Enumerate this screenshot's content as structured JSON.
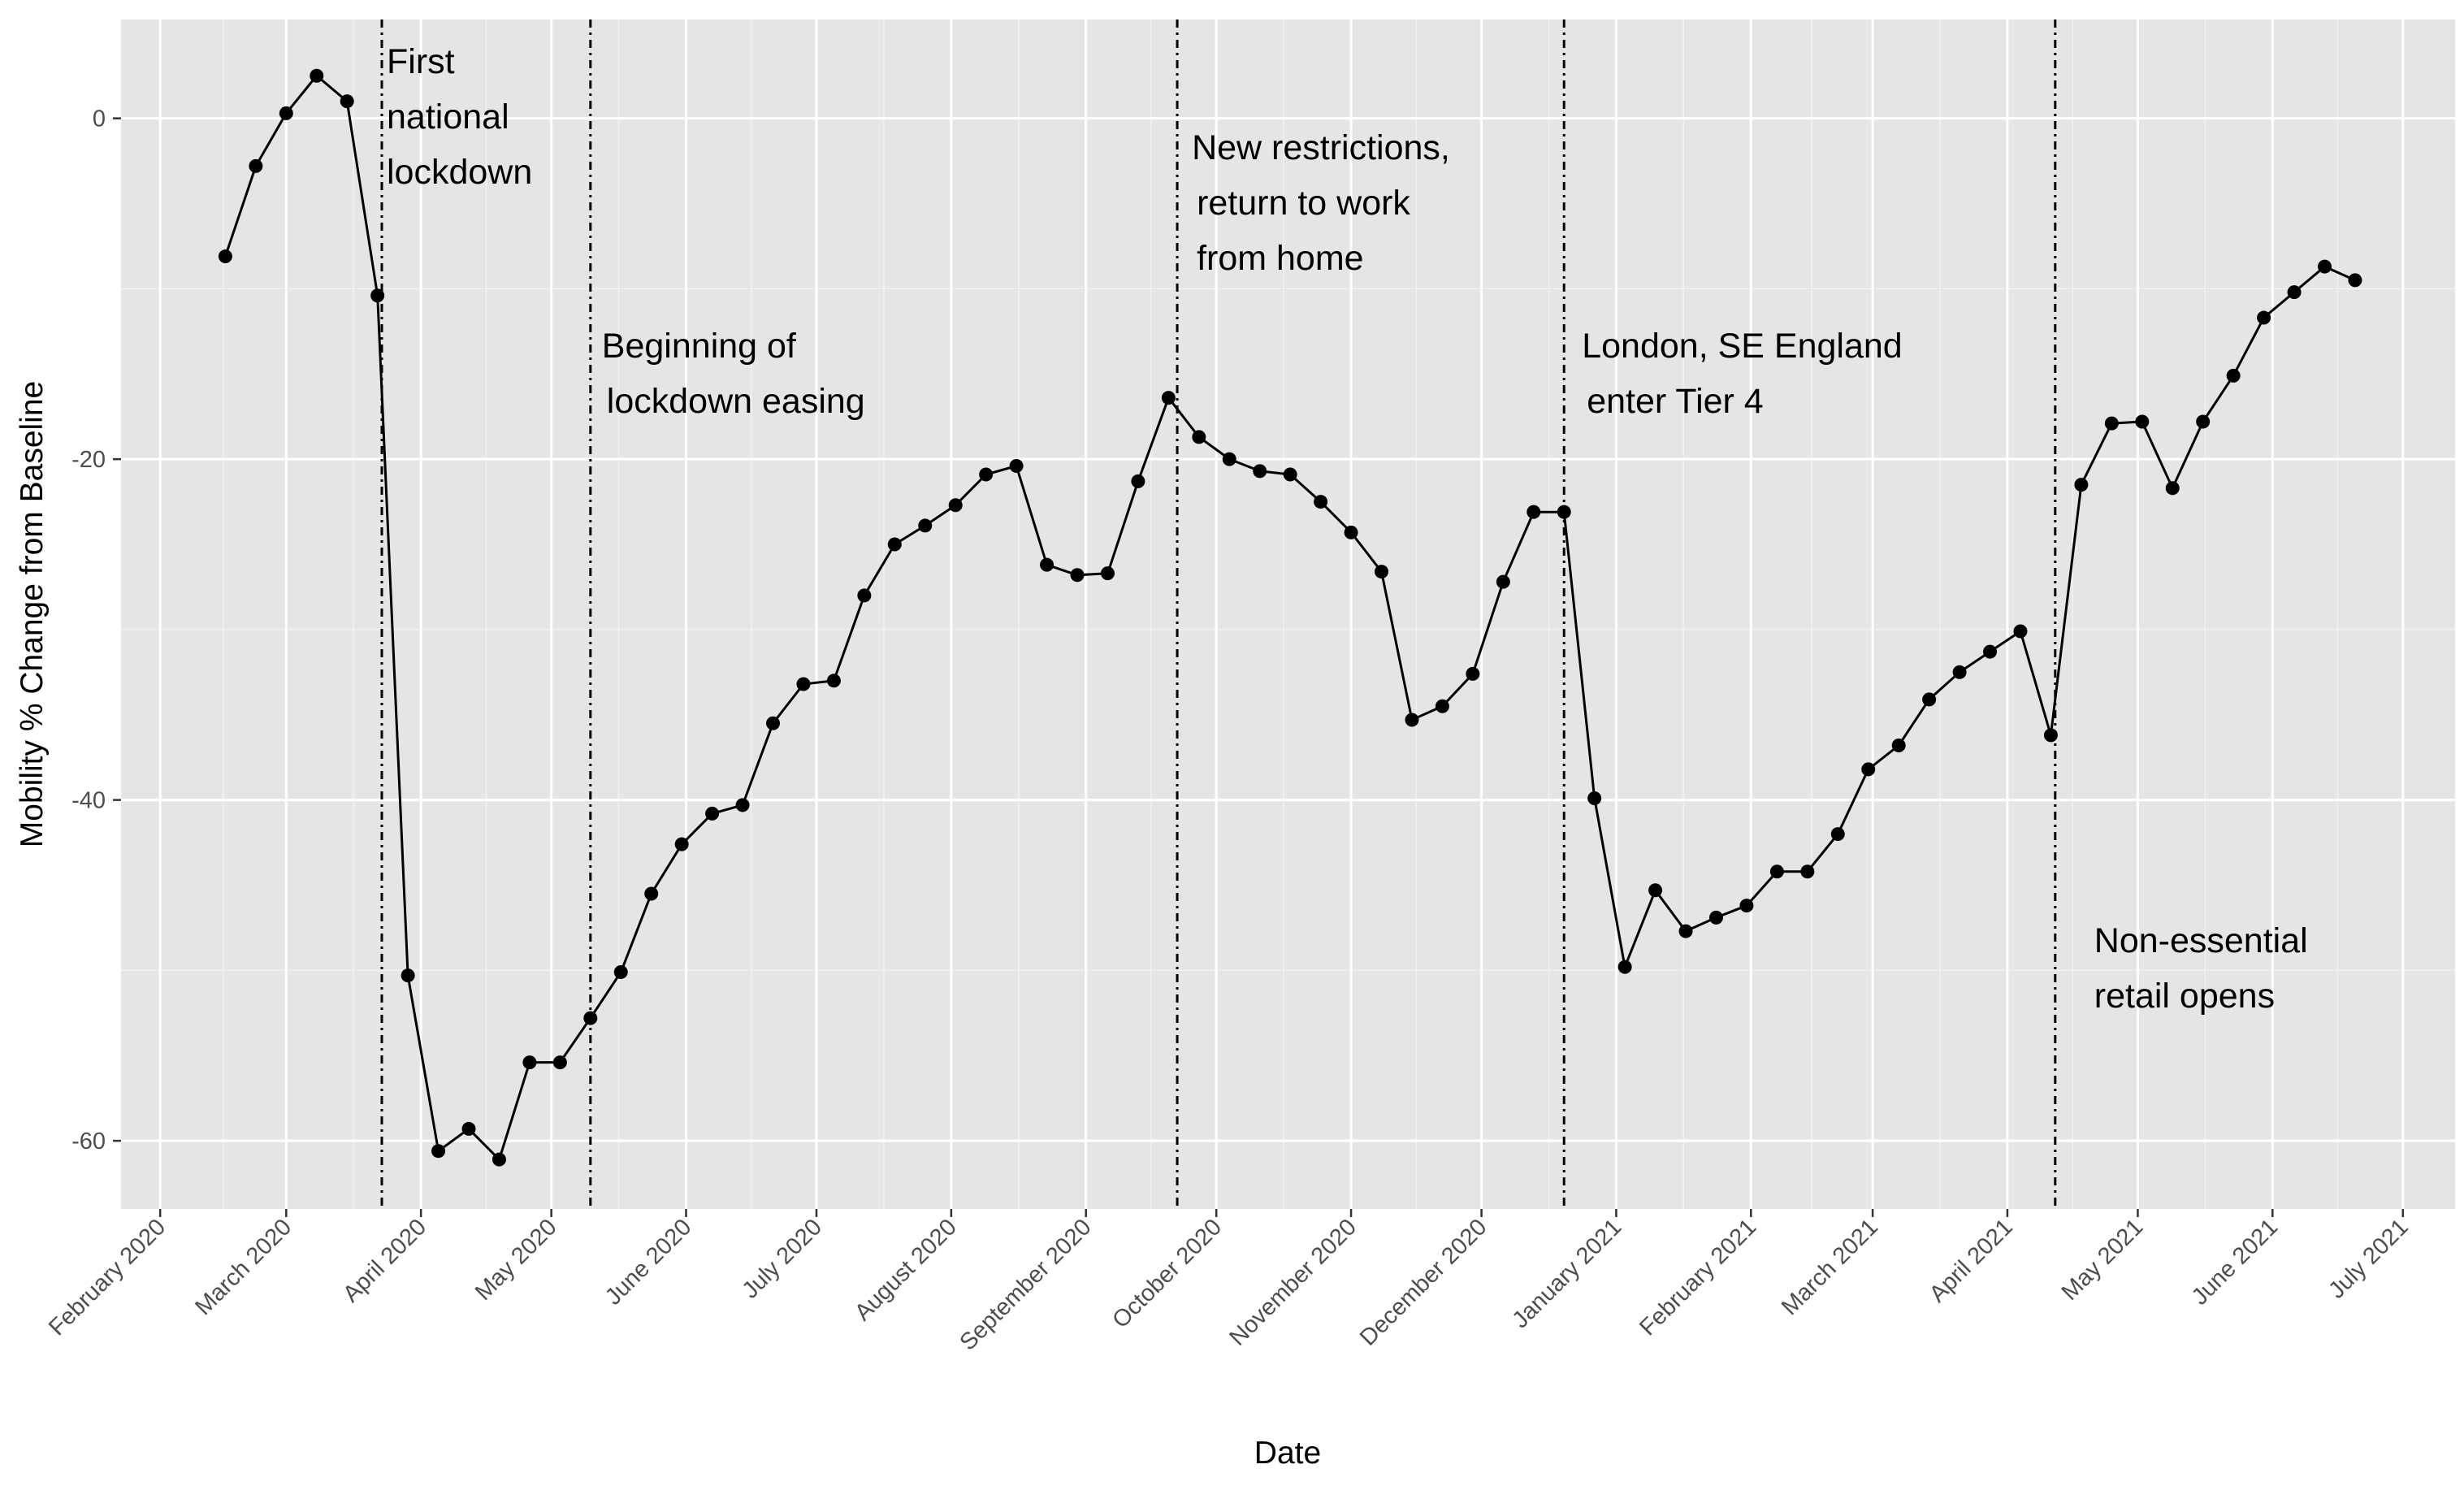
{
  "chart_data": {
    "type": "line",
    "xlabel": "Date",
    "ylabel": "Mobility % Change from Baseline",
    "xlim": [
      "2020-01-23",
      "2021-07-13"
    ],
    "ylim": [
      -64,
      5.8
    ],
    "yticks": [
      0,
      -20,
      -40,
      -60
    ],
    "ytick_labels": [
      "0",
      "-20",
      "-40",
      "-60"
    ],
    "xticks": [
      "2020-02-01",
      "2020-03-01",
      "2020-04-01",
      "2020-05-01",
      "2020-06-01",
      "2020-07-01",
      "2020-08-01",
      "2020-09-01",
      "2020-10-01",
      "2020-11-01",
      "2020-12-01",
      "2021-01-01",
      "2021-02-01",
      "2021-03-01",
      "2021-04-01",
      "2021-05-01",
      "2021-06-01",
      "2021-07-01"
    ],
    "xtick_labels": [
      "February 2020",
      "March 2020",
      "April 2020",
      "May 2020",
      "June 2020",
      "July 2020",
      "August 2020",
      "September 2020",
      "October 2020",
      "November 2020",
      "December 2020",
      "January 2021",
      "February 2021",
      "March 2021",
      "April 2021",
      "May 2021",
      "June 2021",
      "July 2021"
    ],
    "grid": true,
    "series": [
      {
        "x": [
          "2020-02-16",
          "2020-02-23",
          "2020-03-01",
          "2020-03-08",
          "2020-03-15",
          "2020-03-22",
          "2020-03-29",
          "2020-04-05",
          "2020-04-12",
          "2020-04-19",
          "2020-04-26",
          "2020-05-03",
          "2020-05-10",
          "2020-05-17",
          "2020-05-24",
          "2020-05-31",
          "2020-06-07",
          "2020-06-14",
          "2020-06-21",
          "2020-06-28",
          "2020-07-05",
          "2020-07-12",
          "2020-07-19",
          "2020-07-26",
          "2020-08-02",
          "2020-08-09",
          "2020-08-16",
          "2020-08-23",
          "2020-08-30",
          "2020-09-06",
          "2020-09-13",
          "2020-09-20",
          "2020-09-27",
          "2020-10-04",
          "2020-10-11",
          "2020-10-18",
          "2020-10-25",
          "2020-11-01",
          "2020-11-08",
          "2020-11-15",
          "2020-11-22",
          "2020-11-29",
          "2020-12-06",
          "2020-12-13",
          "2020-12-20",
          "2020-12-27",
          "2021-01-03",
          "2021-01-10",
          "2021-01-17",
          "2021-01-24",
          "2021-01-31",
          "2021-02-07",
          "2021-02-14",
          "2021-02-21",
          "2021-02-28",
          "2021-03-07",
          "2021-03-14",
          "2021-03-21",
          "2021-03-28",
          "2021-04-04",
          "2021-04-11",
          "2021-04-18",
          "2021-04-25",
          "2021-05-02",
          "2021-05-09",
          "2021-05-16",
          "2021-05-23",
          "2021-05-30",
          "2021-06-06",
          "2021-06-13",
          "2021-06-20"
        ],
        "values": [
          -8.1,
          -2.8,
          0.3,
          2.5,
          1.0,
          -10.4,
          -50.3,
          -60.6,
          -59.3,
          -61.1,
          -55.4,
          -55.4,
          -52.8,
          -50.1,
          -45.5,
          -42.6,
          -40.8,
          -40.3,
          -35.5,
          -33.2,
          -33.0,
          -28.0,
          -25.0,
          -23.9,
          -22.7,
          -20.9,
          -20.4,
          -26.2,
          -26.8,
          -26.7,
          -21.3,
          -16.4,
          -18.7,
          -20.0,
          -20.7,
          -20.9,
          -22.5,
          -24.3,
          -26.6,
          -35.3,
          -34.5,
          -32.6,
          -27.2,
          -23.1,
          -23.1,
          -39.9,
          -49.8,
          -45.3,
          -47.7,
          -46.9,
          -46.2,
          -44.2,
          -44.2,
          -42.0,
          -38.2,
          -36.8,
          -34.1,
          -32.5,
          -31.3,
          -30.1,
          -36.2,
          -21.5,
          -17.9,
          -17.8,
          -21.7,
          -17.8,
          -15.1,
          -11.7,
          -10.2,
          -8.7,
          -9.5
        ]
      }
    ],
    "events": [
      {
        "date": "2020-03-23",
        "lines": [
          "First",
          "national",
          "lockdown"
        ]
      },
      {
        "date": "2020-05-10",
        "lines": [
          "Beginning of",
          "lockdown easing"
        ]
      },
      {
        "date": "2020-09-22",
        "lines": [
          "New restrictions,",
          "return to work",
          "from home"
        ]
      },
      {
        "date": "2020-12-20",
        "lines": [
          "London, SE England",
          "enter Tier 4"
        ]
      },
      {
        "date": "2021-04-12",
        "lines": [
          "Non-essential",
          "retail opens"
        ]
      }
    ]
  }
}
